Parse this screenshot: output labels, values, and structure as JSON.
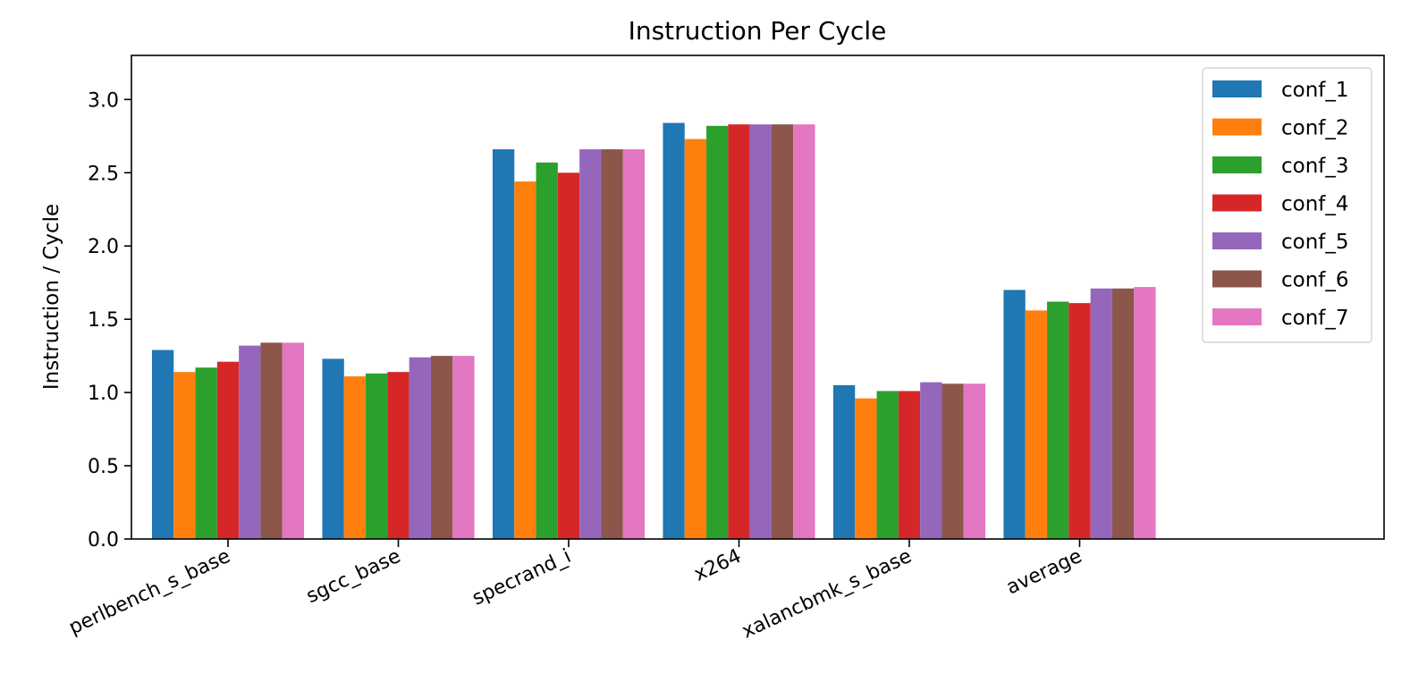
{
  "chart_data": {
    "type": "bar",
    "title": "Instruction Per Cycle",
    "xlabel": "",
    "ylabel": "Instruction / Cycle",
    "ylim": [
      0,
      3.3
    ],
    "yticks": [
      "0.0",
      "0.5",
      "1.0",
      "1.5",
      "2.0",
      "2.5",
      "3.0"
    ],
    "grid": false,
    "legend_position": "top-right",
    "categories": [
      "perlbench_s_base",
      "sgcc_base",
      "specrand_i",
      "x264",
      "xalancbmk_s_base",
      "average"
    ],
    "series": [
      {
        "name": "conf_1",
        "color": "#1f77b4",
        "values": [
          1.29,
          1.23,
          2.66,
          2.84,
          1.05,
          1.7
        ]
      },
      {
        "name": "conf_2",
        "color": "#ff7f0e",
        "values": [
          1.14,
          1.11,
          2.44,
          2.73,
          0.96,
          1.56
        ]
      },
      {
        "name": "conf_3",
        "color": "#2ca02c",
        "values": [
          1.17,
          1.13,
          2.57,
          2.82,
          1.01,
          1.62
        ]
      },
      {
        "name": "conf_4",
        "color": "#d62728",
        "values": [
          1.21,
          1.14,
          2.5,
          2.83,
          1.01,
          1.61
        ]
      },
      {
        "name": "conf_5",
        "color": "#9467bd",
        "values": [
          1.32,
          1.24,
          2.66,
          2.83,
          1.07,
          1.71
        ]
      },
      {
        "name": "conf_6",
        "color": "#8c564b",
        "values": [
          1.34,
          1.25,
          2.66,
          2.83,
          1.06,
          1.71
        ]
      },
      {
        "name": "conf_7",
        "color": "#e377c2",
        "values": [
          1.34,
          1.25,
          2.66,
          2.83,
          1.06,
          1.72
        ]
      }
    ]
  }
}
